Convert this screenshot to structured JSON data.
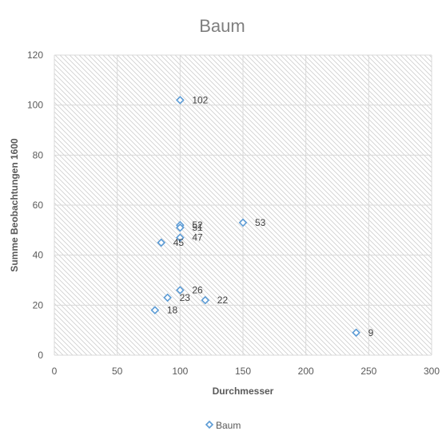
{
  "chart_data": {
    "type": "scatter",
    "title": "Baum",
    "xlabel": "Durchmesser",
    "ylabel": "Summe  Beobachtungen 1600",
    "xlim": [
      0,
      300
    ],
    "ylim": [
      0,
      120
    ],
    "x_ticks": [
      "0",
      "50",
      "100",
      "150",
      "200",
      "250",
      "300"
    ],
    "y_ticks": [
      "0",
      "20",
      "40",
      "60",
      "80",
      "100",
      "120"
    ],
    "grid": true,
    "legend_position": "bottom",
    "series": [
      {
        "name": "Baum",
        "color": "#5b9bd5",
        "marker": "diamond-outline",
        "points": [
          {
            "x": 100,
            "y": 102,
            "label": "102"
          },
          {
            "x": 100,
            "y": 52,
            "label": "52"
          },
          {
            "x": 100,
            "y": 51,
            "label": "51"
          },
          {
            "x": 150,
            "y": 53,
            "label": "53"
          },
          {
            "x": 100,
            "y": 47,
            "label": "47"
          },
          {
            "x": 85,
            "y": 45,
            "label": "45"
          },
          {
            "x": 100,
            "y": 26,
            "label": "26"
          },
          {
            "x": 90,
            "y": 23,
            "label": "23"
          },
          {
            "x": 120,
            "y": 22,
            "label": "22"
          },
          {
            "x": 80,
            "y": 18,
            "label": "18"
          },
          {
            "x": 240,
            "y": 9,
            "label": "9"
          }
        ]
      }
    ]
  }
}
